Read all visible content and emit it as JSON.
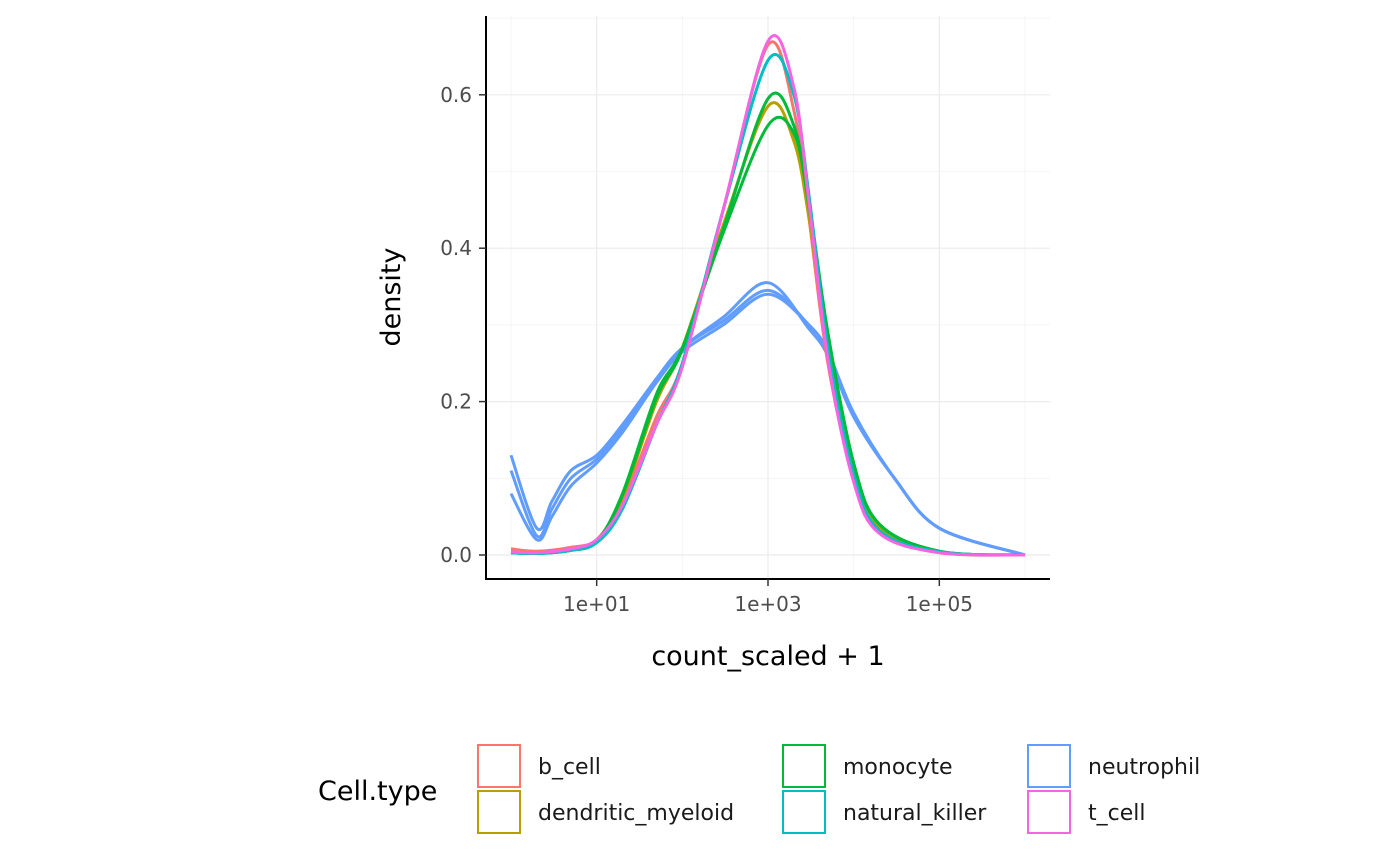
{
  "chart_data": {
    "type": "line",
    "subtype": "density",
    "title": "",
    "xlabel": "count_scaled + 1",
    "ylabel": "density",
    "x_scale": "log10",
    "xlim": [
      1,
      1000000
    ],
    "ylim": [
      0,
      0.7
    ],
    "x_ticks": [
      10,
      1000,
      100000
    ],
    "x_tick_labels": [
      "1e+01",
      "1e+03",
      "1e+05"
    ],
    "y_ticks": [
      0,
      0.2,
      0.4,
      0.6
    ],
    "y_tick_labels": [
      "0.0",
      "0.2",
      "0.4",
      "0.6"
    ],
    "grid": true,
    "legend": {
      "title": "Cell.type",
      "position": "bottom",
      "entries": [
        {
          "key": "b_cell",
          "label": "b_cell",
          "color": "#F8766D"
        },
        {
          "key": "dendritic_myeloid",
          "label": "dendritic_myeloid",
          "color": "#B79F00"
        },
        {
          "key": "monocyte",
          "label": "monocyte",
          "color": "#00BA38"
        },
        {
          "key": "natural_killer",
          "label": "natural_killer",
          "color": "#00BFC4"
        },
        {
          "key": "neutrophil",
          "label": "neutrophil",
          "color": "#619CFF"
        },
        {
          "key": "t_cell",
          "label": "t_cell",
          "color": "#F564E3"
        }
      ]
    },
    "series": [
      {
        "cell_type": "neutrophil",
        "color": "#619CFF",
        "x": [
          1,
          2,
          3,
          5,
          10,
          20,
          50,
          100,
          300,
          1000,
          3000,
          5000,
          10000,
          30000,
          100000,
          1000000
        ],
        "y": [
          0.13,
          0.035,
          0.07,
          0.11,
          0.13,
          0.17,
          0.23,
          0.27,
          0.31,
          0.355,
          0.295,
          0.26,
          0.18,
          0.1,
          0.035,
          0.0
        ]
      },
      {
        "cell_type": "neutrophil",
        "color": "#619CFF",
        "x": [
          1,
          2,
          3,
          5,
          10,
          20,
          50,
          100,
          300,
          1000,
          3000,
          5000,
          10000,
          30000,
          100000,
          1000000
        ],
        "y": [
          0.11,
          0.025,
          0.06,
          0.1,
          0.125,
          0.165,
          0.23,
          0.27,
          0.305,
          0.345,
          0.3,
          0.265,
          0.185,
          0.1,
          0.035,
          0.0
        ]
      },
      {
        "cell_type": "neutrophil",
        "color": "#619CFF",
        "x": [
          1,
          2,
          3,
          5,
          10,
          20,
          50,
          100,
          300,
          1000,
          3000,
          5000,
          10000,
          30000,
          100000,
          1000000
        ],
        "y": [
          0.08,
          0.02,
          0.05,
          0.09,
          0.12,
          0.16,
          0.225,
          0.265,
          0.3,
          0.34,
          0.3,
          0.265,
          0.185,
          0.1,
          0.035,
          0.0
        ]
      },
      {
        "cell_type": "b_cell",
        "color": "#F8766D",
        "x": [
          1,
          2,
          5,
          10,
          20,
          50,
          100,
          300,
          1000,
          2000,
          3000,
          5000,
          10000,
          20000,
          100000,
          1000000
        ],
        "y": [
          0.008,
          0.005,
          0.01,
          0.02,
          0.07,
          0.18,
          0.25,
          0.45,
          0.665,
          0.58,
          0.44,
          0.25,
          0.1,
          0.03,
          0.003,
          0.0
        ]
      },
      {
        "cell_type": "dendritic_myeloid",
        "color": "#B79F00",
        "x": [
          1,
          2,
          5,
          10,
          20,
          50,
          100,
          300,
          1000,
          2000,
          3000,
          5000,
          10000,
          20000,
          100000,
          1000000
        ],
        "y": [
          0.004,
          0.003,
          0.008,
          0.02,
          0.075,
          0.2,
          0.27,
          0.43,
          0.585,
          0.54,
          0.44,
          0.27,
          0.11,
          0.035,
          0.004,
          0.0
        ]
      },
      {
        "cell_type": "monocyte",
        "color": "#00BA38",
        "x": [
          1,
          2,
          5,
          10,
          20,
          50,
          100,
          300,
          1000,
          2000,
          3000,
          5000,
          10000,
          20000,
          100000,
          1000000
        ],
        "y": [
          0.003,
          0.002,
          0.006,
          0.018,
          0.08,
          0.21,
          0.27,
          0.42,
          0.56,
          0.55,
          0.46,
          0.29,
          0.12,
          0.04,
          0.005,
          0.0
        ]
      },
      {
        "cell_type": "monocyte",
        "color": "#00BA38",
        "x": [
          1,
          2,
          5,
          10,
          20,
          50,
          100,
          300,
          1000,
          2000,
          3000,
          5000,
          10000,
          20000,
          100000,
          1000000
        ],
        "y": [
          0.003,
          0.002,
          0.006,
          0.018,
          0.078,
          0.205,
          0.268,
          0.425,
          0.595,
          0.56,
          0.455,
          0.285,
          0.118,
          0.04,
          0.005,
          0.0
        ]
      },
      {
        "cell_type": "natural_killer",
        "color": "#00BFC4",
        "x": [
          1,
          2,
          5,
          10,
          20,
          50,
          100,
          300,
          1000,
          2000,
          3000,
          5000,
          10000,
          20000,
          100000,
          1000000
        ],
        "y": [
          0.003,
          0.002,
          0.006,
          0.016,
          0.06,
          0.17,
          0.25,
          0.45,
          0.645,
          0.6,
          0.47,
          0.27,
          0.105,
          0.032,
          0.004,
          0.0
        ]
      },
      {
        "cell_type": "t_cell",
        "color": "#F564E3",
        "x": [
          1,
          2,
          5,
          10,
          20,
          50,
          100,
          300,
          1000,
          2000,
          3000,
          5000,
          10000,
          20000,
          100000,
          1000000
        ],
        "y": [
          0.004,
          0.003,
          0.008,
          0.02,
          0.065,
          0.17,
          0.245,
          0.45,
          0.67,
          0.61,
          0.46,
          0.255,
          0.095,
          0.028,
          0.003,
          0.0
        ]
      }
    ]
  }
}
